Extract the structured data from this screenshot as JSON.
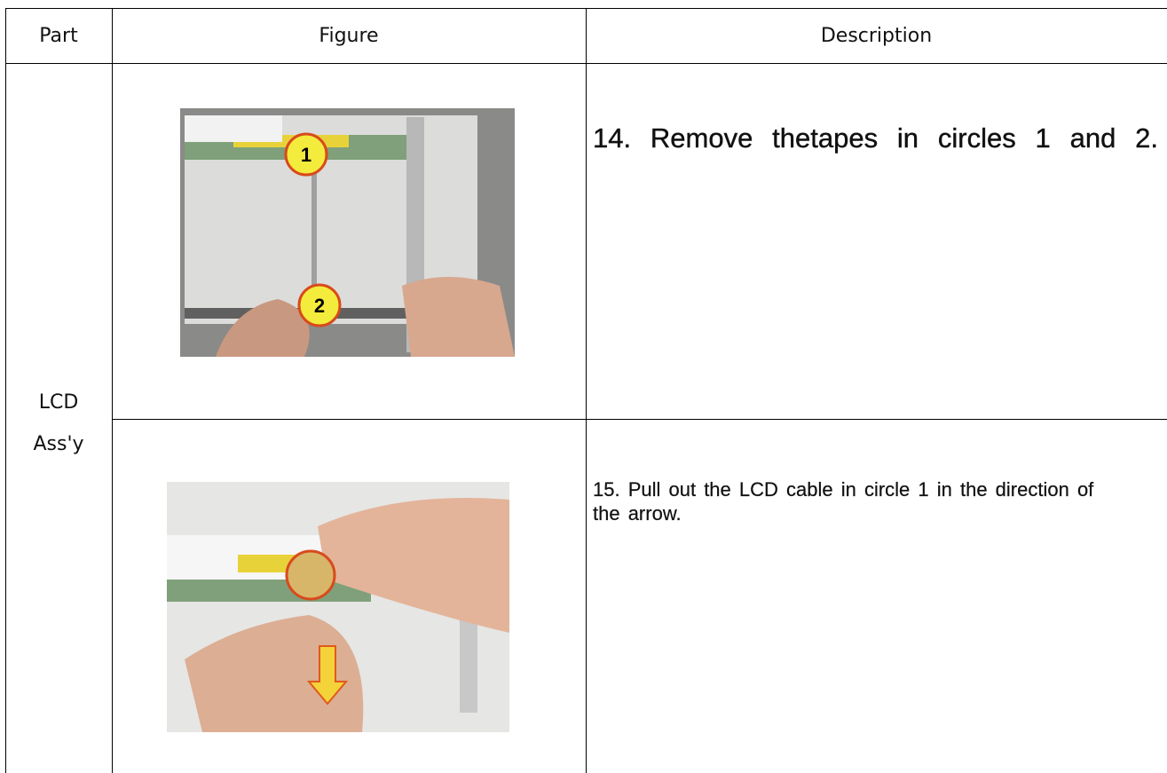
{
  "table": {
    "header": [
      "Part",
      "Figure",
      "Description"
    ],
    "part": "LCD Ass'y",
    "rows": [
      {
        "description": "14. Remove thetapes in circles 1 and 2.",
        "markers": [
          "1",
          "2"
        ]
      },
      {
        "description": "15. Pull out the LCD cable in circle 1 in the direction of the arrow."
      }
    ]
  }
}
